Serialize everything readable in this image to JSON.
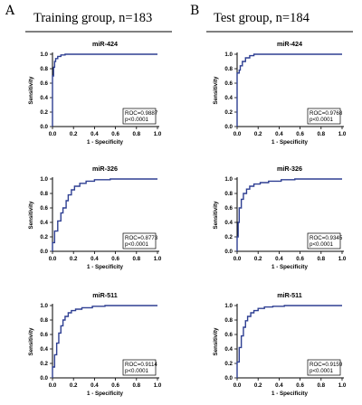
{
  "panels": [
    {
      "letter": "A",
      "title": "Training group, n=183"
    },
    {
      "letter": "B",
      "title": "Test group, n=184"
    }
  ],
  "chart_data": [
    {
      "type": "line",
      "panel": "A",
      "title": "miR-424",
      "xlabel": "1 - Specificity",
      "ylabel": "Sensitivity",
      "xlim": [
        0,
        1
      ],
      "ylim": [
        0,
        1
      ],
      "xticks": [
        "0.0",
        "0.2",
        "0.4",
        "0.6",
        "0.8",
        "1.0"
      ],
      "yticks": [
        "0.0",
        "0.2",
        "0.4",
        "0.6",
        "0.8",
        "1.0"
      ],
      "annotation": [
        "ROC=0.9887",
        "p<0.0001"
      ],
      "series": [
        {
          "x": [
            0,
            0,
            0.01,
            0.01,
            0.02,
            0.02,
            0.03,
            0.03,
            0.05,
            0.05,
            0.08,
            0.08,
            0.12,
            0.12,
            1.0
          ],
          "y": [
            0,
            0.7,
            0.7,
            0.82,
            0.82,
            0.9,
            0.9,
            0.94,
            0.94,
            0.97,
            0.97,
            0.99,
            0.99,
            1.0,
            1.0
          ]
        }
      ]
    },
    {
      "type": "line",
      "panel": "B",
      "title": "miR-424",
      "xlabel": "1 - Specificity",
      "ylabel": "Sensitivity",
      "xlim": [
        0,
        1
      ],
      "ylim": [
        0,
        1
      ],
      "xticks": [
        "0.0",
        "0.2",
        "0.4",
        "0.6",
        "0.8",
        "1.0"
      ],
      "yticks": [
        "0.0",
        "0.2",
        "0.4",
        "0.6",
        "0.8",
        "1.0"
      ],
      "annotation": [
        "ROC=0.9768",
        "p<0.0001"
      ],
      "series": [
        {
          "x": [
            0,
            0,
            0.02,
            0.02,
            0.03,
            0.03,
            0.05,
            0.05,
            0.08,
            0.08,
            0.12,
            0.12,
            0.16,
            0.16,
            1.0
          ],
          "y": [
            0,
            0.74,
            0.74,
            0.78,
            0.78,
            0.84,
            0.84,
            0.9,
            0.9,
            0.95,
            0.95,
            0.98,
            0.98,
            1.0,
            1.0
          ]
        }
      ]
    },
    {
      "type": "line",
      "panel": "A",
      "title": "miR-326",
      "xlabel": "1 - Specificity",
      "ylabel": "Sensitivity",
      "xlim": [
        0,
        1
      ],
      "ylim": [
        0,
        1
      ],
      "xticks": [
        "0.0",
        "0.2",
        "0.4",
        "0.6",
        "0.8",
        "1.0"
      ],
      "yticks": [
        "0.0",
        "0.2",
        "0.4",
        "0.6",
        "0.8",
        "1.0"
      ],
      "annotation": [
        "ROC=0.8773",
        "p<0.0001"
      ],
      "series": [
        {
          "x": [
            0,
            0,
            0.02,
            0.02,
            0.05,
            0.05,
            0.08,
            0.08,
            0.1,
            0.1,
            0.13,
            0.13,
            0.15,
            0.15,
            0.18,
            0.18,
            0.21,
            0.21,
            0.26,
            0.26,
            0.32,
            0.32,
            0.4,
            0.4,
            0.55,
            0.55,
            1.0
          ],
          "y": [
            0,
            0.12,
            0.12,
            0.28,
            0.28,
            0.42,
            0.42,
            0.53,
            0.53,
            0.6,
            0.6,
            0.7,
            0.7,
            0.78,
            0.78,
            0.85,
            0.85,
            0.9,
            0.9,
            0.94,
            0.94,
            0.97,
            0.97,
            0.99,
            0.99,
            1.0,
            1.0
          ]
        }
      ]
    },
    {
      "type": "line",
      "panel": "B",
      "title": "miR-326",
      "xlabel": "1 - Specificity",
      "ylabel": "Sensitivity",
      "xlim": [
        0,
        1
      ],
      "ylim": [
        0,
        1
      ],
      "xticks": [
        "0.0",
        "0.2",
        "0.4",
        "0.6",
        "0.8",
        "1.0"
      ],
      "yticks": [
        "0.0",
        "0.2",
        "0.4",
        "0.6",
        "0.8",
        "1.0"
      ],
      "annotation": [
        "ROC=0.9345",
        "p<0.0001"
      ],
      "series": [
        {
          "x": [
            0,
            0,
            0.01,
            0.01,
            0.02,
            0.02,
            0.04,
            0.04,
            0.06,
            0.06,
            0.09,
            0.09,
            0.12,
            0.12,
            0.16,
            0.16,
            0.22,
            0.22,
            0.3,
            0.3,
            0.42,
            0.42,
            0.55,
            0.55,
            1.0
          ],
          "y": [
            0,
            0.2,
            0.2,
            0.4,
            0.4,
            0.6,
            0.6,
            0.72,
            0.72,
            0.8,
            0.8,
            0.86,
            0.86,
            0.9,
            0.9,
            0.93,
            0.93,
            0.95,
            0.95,
            0.97,
            0.97,
            0.99,
            0.99,
            1.0,
            1.0
          ]
        }
      ]
    },
    {
      "type": "line",
      "panel": "A",
      "title": "miR-511",
      "xlabel": "1 - Specificity",
      "ylabel": "Sensitivity",
      "xlim": [
        0,
        1
      ],
      "ylim": [
        0,
        1
      ],
      "xticks": [
        "0.0",
        "0.2",
        "0.4",
        "0.6",
        "0.8",
        "1.0"
      ],
      "yticks": [
        "0.0",
        "0.2",
        "0.4",
        "0.6",
        "0.8",
        "1.0"
      ],
      "annotation": [
        "ROC=0.9114",
        "p<0.0001"
      ],
      "series": [
        {
          "x": [
            0,
            0,
            0.02,
            0.02,
            0.04,
            0.04,
            0.06,
            0.06,
            0.08,
            0.08,
            0.1,
            0.1,
            0.12,
            0.12,
            0.15,
            0.15,
            0.18,
            0.18,
            0.22,
            0.22,
            0.28,
            0.28,
            0.38,
            0.38,
            0.5,
            0.5,
            1.0
          ],
          "y": [
            0,
            0.15,
            0.15,
            0.32,
            0.32,
            0.48,
            0.48,
            0.62,
            0.62,
            0.72,
            0.72,
            0.8,
            0.8,
            0.85,
            0.85,
            0.9,
            0.9,
            0.93,
            0.93,
            0.95,
            0.95,
            0.97,
            0.97,
            0.99,
            0.99,
            1.0,
            1.0
          ]
        }
      ]
    },
    {
      "type": "line",
      "panel": "B",
      "title": "miR-511",
      "xlabel": "1 - Specificity",
      "ylabel": "Sensitivity",
      "xlim": [
        0,
        1
      ],
      "ylim": [
        0,
        1
      ],
      "xticks": [
        "0.0",
        "0.2",
        "0.4",
        "0.6",
        "0.8",
        "1.0"
      ],
      "yticks": [
        "0.0",
        "0.2",
        "0.4",
        "0.6",
        "0.8",
        "1.0"
      ],
      "annotation": [
        "ROC=0.9159",
        "p<0.0001"
      ],
      "series": [
        {
          "x": [
            0,
            0,
            0.02,
            0.02,
            0.04,
            0.04,
            0.06,
            0.06,
            0.08,
            0.08,
            0.1,
            0.1,
            0.13,
            0.13,
            0.16,
            0.16,
            0.2,
            0.2,
            0.26,
            0.26,
            0.34,
            0.34,
            0.45,
            0.45,
            1.0
          ],
          "y": [
            0,
            0.22,
            0.22,
            0.42,
            0.42,
            0.58,
            0.58,
            0.7,
            0.7,
            0.79,
            0.79,
            0.85,
            0.85,
            0.9,
            0.9,
            0.93,
            0.93,
            0.96,
            0.96,
            0.98,
            0.98,
            0.99,
            0.99,
            1.0,
            1.0
          ]
        }
      ]
    }
  ],
  "colors": {
    "line": "#2e3f92",
    "axis": "#000000"
  }
}
